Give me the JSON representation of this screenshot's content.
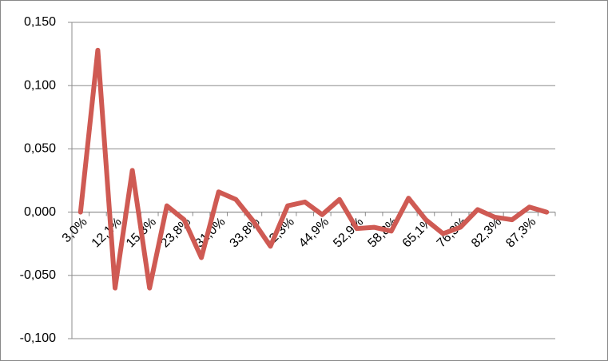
{
  "chart_data": {
    "type": "line",
    "categories": [
      "3,0%",
      null,
      "12,1%",
      null,
      "15,3%",
      null,
      "23,8%",
      null,
      "31,0%",
      null,
      "33,8%",
      null,
      "42,3%",
      null,
      "44,9%",
      null,
      "52,9%",
      null,
      "58,8%",
      null,
      "65,1%",
      null,
      "76,3%",
      null,
      "82,3%",
      null,
      "87,3%",
      null
    ],
    "series": [
      {
        "color": "#cf5a53",
        "values": [
          0,
          0.128,
          -0.06,
          0.033,
          -0.06,
          0.005,
          -0.006,
          -0.036,
          0.016,
          0.01,
          -0.007,
          -0.027,
          0.005,
          0.008,
          -0.002,
          0.01,
          -0.013,
          -0.012,
          -0.015,
          0.011,
          -0.006,
          -0.017,
          -0.012,
          0.002,
          -0.004,
          -0.006,
          0.004,
          0
        ]
      }
    ],
    "ylim": [
      -0.1,
      0.15
    ],
    "yticks": [
      {
        "value": -0.1,
        "label": "-0,100"
      },
      {
        "value": -0.05,
        "label": "-0,050"
      },
      {
        "value": 0,
        "label": "0,000"
      },
      {
        "value": 0.05,
        "label": "0,050"
      },
      {
        "value": 0.1,
        "label": "0,100"
      },
      {
        "value": 0.15,
        "label": "0,150"
      }
    ],
    "grid": true
  }
}
